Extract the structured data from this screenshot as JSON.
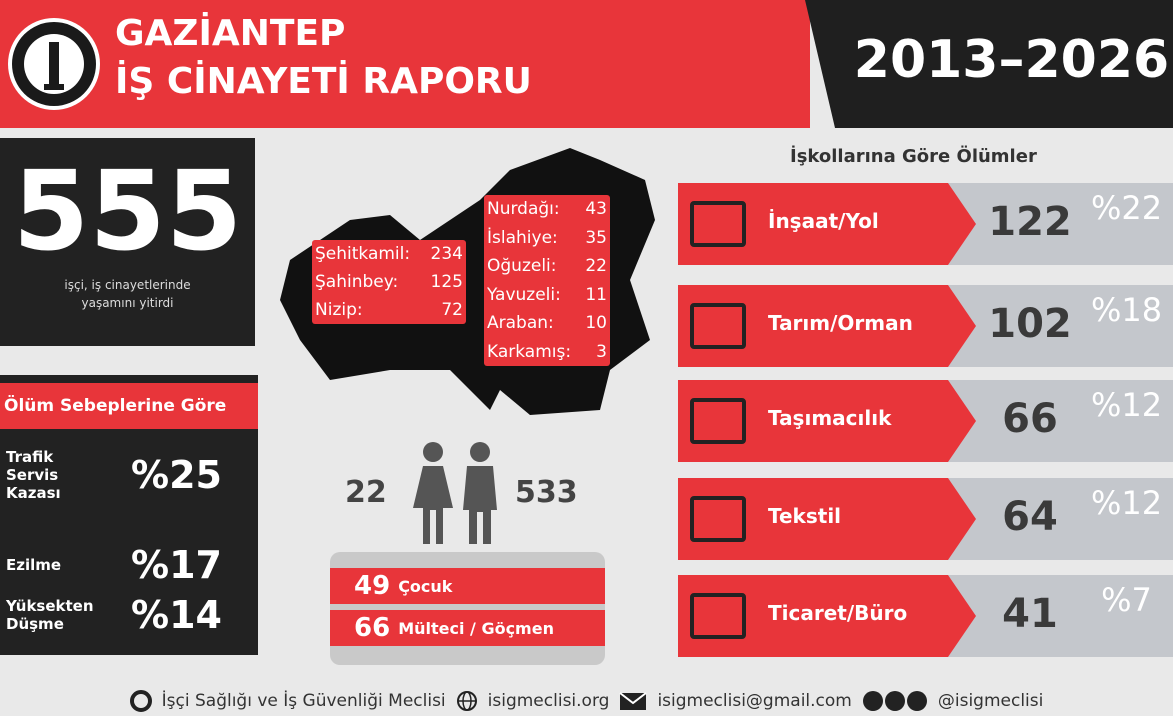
{
  "header": {
    "title_lines": [
      "GAZİANTEP",
      "İŞ CİNAYETİ RAPORU"
    ],
    "years": "2013–2026"
  },
  "total": {
    "number": "555",
    "caption_lines": [
      "işçi, iş cinayetlerinde",
      "yaşamını yitirdi"
    ]
  },
  "causes": {
    "heading": "Ölüm Sebeplerine Göre",
    "items": [
      {
        "label_lines": [
          "Trafik",
          "Servis",
          "Kazası"
        ],
        "percent": "%25"
      },
      {
        "label_lines": [
          "Ezilme"
        ],
        "percent": "%17"
      },
      {
        "label_lines": [
          "Yüksekten",
          "Düşme"
        ],
        "percent": "%14"
      }
    ]
  },
  "districts": {
    "central": [
      {
        "name": "Şehitkamil:",
        "count": "234"
      },
      {
        "name": "Şahinbey:",
        "count": "125"
      },
      {
        "name": "Nizip:",
        "count": "72"
      }
    ],
    "other": [
      {
        "name": "Nurdağı:",
        "count": "43"
      },
      {
        "name": "İslahiye:",
        "count": "35"
      },
      {
        "name": "Oğuzeli:",
        "count": "22"
      },
      {
        "name": "Yavuzeli:",
        "count": "11"
      },
      {
        "name": "Araban:",
        "count": "10"
      },
      {
        "name": "Karkamış:",
        "count": "3"
      }
    ]
  },
  "gender": {
    "women": "22",
    "men": "533"
  },
  "groups": [
    {
      "count": "49",
      "label": "Çocuk"
    },
    {
      "count": "66",
      "label": "Mülteci / Göçmen"
    }
  ],
  "sectors": {
    "heading": "İşkollarına Göre Ölümler",
    "items": [
      {
        "name": "İnşaat/Yol",
        "count": "122",
        "percent": "%22"
      },
      {
        "name": "Tarım/Orman",
        "count": "102",
        "percent": "%18"
      },
      {
        "name": "Taşımacılık",
        "count": "66",
        "percent": "%12"
      },
      {
        "name": "Tekstil",
        "count": "64",
        "percent": "%12"
      },
      {
        "name": "Ticaret/Büro",
        "count": "41",
        "percent": "%7"
      }
    ]
  },
  "footer": {
    "organization": "İşçi Sağlığı ve İş Güvenliği Meclisi",
    "website": "isigmeclisi.org",
    "email": "isigmeclisi@gmail.com",
    "social": "@isigmeclisi"
  }
}
